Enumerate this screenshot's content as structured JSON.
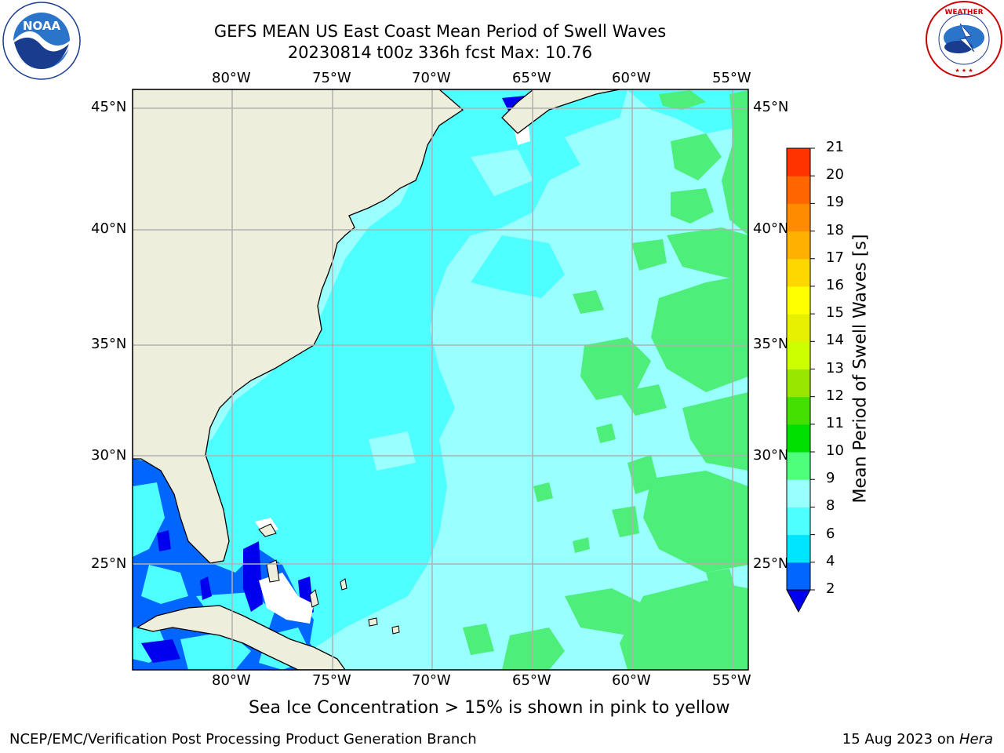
{
  "title_line1": "GEFS MEAN US East Coast Mean Period of Swell Waves",
  "title_line2": "20230814 t00z 336h fcst   Max: 10.76",
  "logos": {
    "left": "noaa-logo",
    "right": "nws-logo",
    "left_ring_text": "NATIONAL OCEANIC AND ATMOSPHERIC ADMINISTRATION · U.S. DEPARTMENT OF COMMERCE",
    "right_ring_text": "NATIONAL WEATHER SERVICE"
  },
  "lon_labels": [
    "80°W",
    "75°W",
    "70°W",
    "65°W",
    "60°W",
    "55°W"
  ],
  "lat_labels": [
    "45°N",
    "40°N",
    "35°N",
    "30°N",
    "25°N"
  ],
  "colorbar": {
    "title": "Mean Period of Swell Waves [s]",
    "ticks": [
      "2",
      "4",
      "6",
      "8",
      "9",
      "10",
      "11",
      "12",
      "13",
      "14",
      "15",
      "16",
      "17",
      "18",
      "19",
      "20",
      "21"
    ],
    "colors": [
      "#0066ff",
      "#00e5ff",
      "#4dffff",
      "#99ffff",
      "#4dff7a",
      "#00e000",
      "#44e000",
      "#99e600",
      "#ccff00",
      "#e6f000",
      "#ffff00",
      "#ffd700",
      "#ffb000",
      "#ff8c00",
      "#ff6600",
      "#ff3300",
      "#ff0000"
    ],
    "under_color": "#0000ee"
  },
  "colors": {
    "land": "#eeeedc",
    "ocean_base": "#99ffff",
    "ocean_cyan": "#4dffff",
    "ocean_green": "#4dee7a",
    "deep_blue": "#0066ff"
  },
  "note": "Sea Ice Concentration > 15% is shown in pink to yellow",
  "footer_left": "NCEP/EMC/Verification Post Processing Product Generation Branch",
  "footer_date": "15 Aug 2023 on ",
  "footer_machine": "Hera"
}
